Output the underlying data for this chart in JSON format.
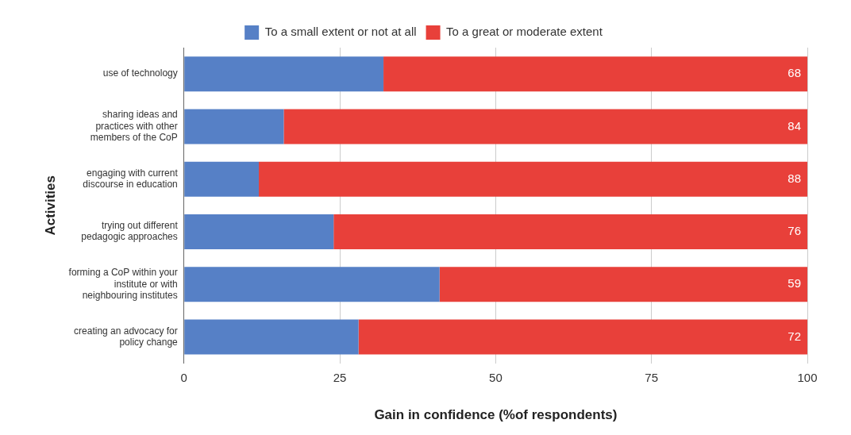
{
  "chart_data": {
    "type": "bar",
    "orientation": "horizontal",
    "stacked": true,
    "xlabel": "Gain in confidence (%of respondents)",
    "ylabel": "Activities",
    "categories": [
      "use of technology",
      "sharing ideas and practices with other members of the CoP",
      "engaging with current discourse in education",
      "trying out different pedagogic approaches",
      "forming a CoP within your institute or with neighbouring institutes",
      "creating an advocacy for policy change"
    ],
    "series": [
      {
        "name": "To a small extent or not at all",
        "color": "#5680c6",
        "values": [
          32,
          16,
          12,
          24,
          41,
          28
        ]
      },
      {
        "name": "To a great or moderate extent",
        "color": "#e8403a",
        "values": [
          68,
          84,
          88,
          76,
          59,
          72
        ],
        "value_labels": [
          "68",
          "84",
          "88",
          "76",
          "59",
          "72"
        ]
      }
    ],
    "xlim": [
      0,
      100
    ],
    "xticks": [
      0,
      25,
      50,
      75,
      100
    ],
    "grid": "x",
    "legend": "top"
  }
}
